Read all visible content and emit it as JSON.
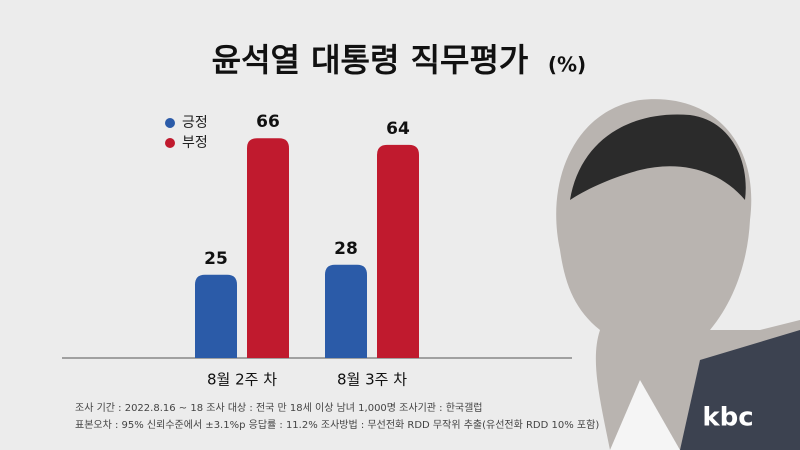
{
  "chart_data": {
    "type": "bar",
    "title": "윤석열 대통령 직무평가",
    "unit": "(%)",
    "categories": [
      "8월 2주 차",
      "8월 3주 차"
    ],
    "series": [
      {
        "name": "긍정",
        "color": "#2b5ba8",
        "values": [
          25,
          28
        ]
      },
      {
        "name": "부정",
        "color": "#c01a2e",
        "values": [
          66,
          64
        ]
      }
    ],
    "notes": [
      "조사 기간 : 2022.8.16 ~ 18   조사 대상 : 전국 만 18세 이상 남녀 1,000명   조사기관 : 한국갤럽",
      "표본오차 : 95% 신뢰수준에서 ±3.1%p   응답률 : 11.2% 조사방법 : 무선전화 RDD 무작위 추출(유선전화 RDD 10% 포함)"
    ],
    "logo": "kbc"
  }
}
